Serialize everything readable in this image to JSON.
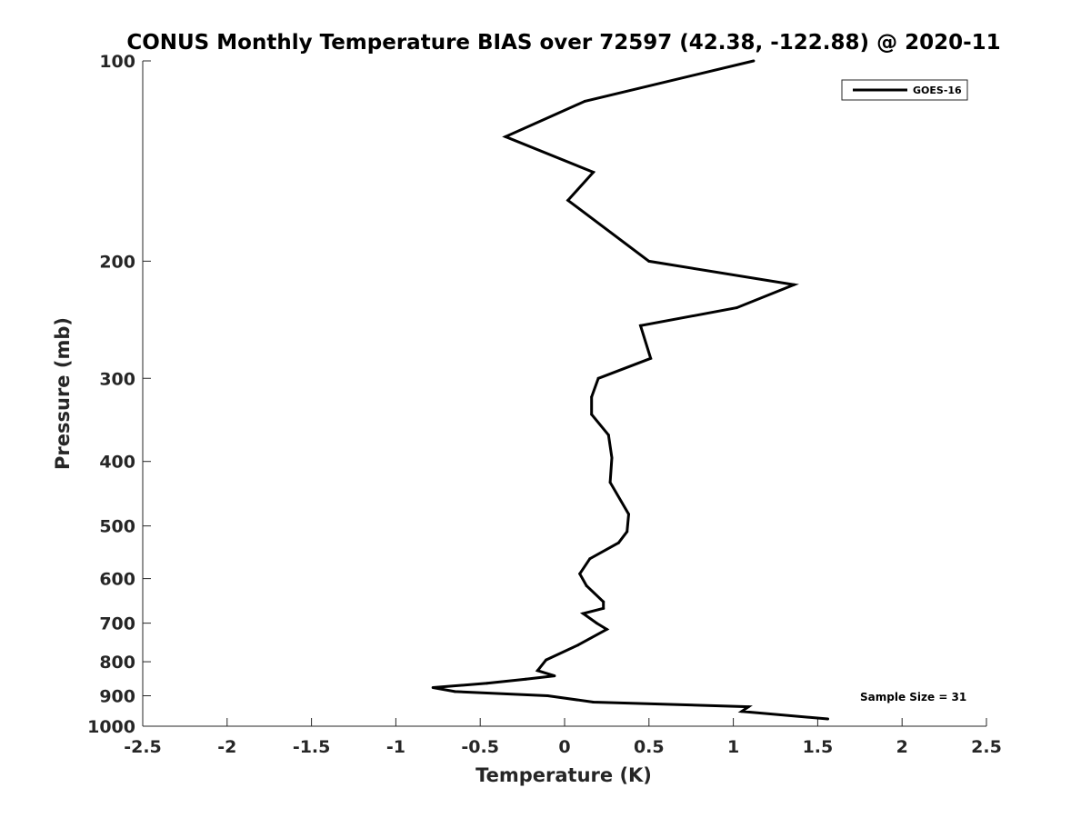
{
  "chart_data": {
    "type": "line",
    "title": "CONUS Monthly Temperature BIAS over 72597 (42.38, -122.88) @ 2020-11",
    "xlabel": "Temperature (K)",
    "ylabel": "Pressure (mb)",
    "xlim": [
      -2.5,
      2.5
    ],
    "ylim": [
      1000,
      100
    ],
    "y_scale": "log",
    "y_reversed": true,
    "grid": false,
    "legend_position": "top-right",
    "x_ticks": [
      "-2.5",
      "-2",
      "-1.5",
      "-1",
      "-0.5",
      "0",
      "0.5",
      "1",
      "1.5",
      "2",
      "2.5"
    ],
    "y_ticks": [
      "100",
      "200",
      "300",
      "400",
      "500",
      "600",
      "700",
      "800",
      "900",
      "1000"
    ],
    "annotation": "Sample Size = 31",
    "line_color": "#000000",
    "series": [
      {
        "name": "GOES-16",
        "points": [
          [
            1.12,
            100
          ],
          [
            0.12,
            115
          ],
          [
            -0.35,
            130
          ],
          [
            0.17,
            147
          ],
          [
            0.02,
            162
          ],
          [
            0.5,
            200
          ],
          [
            1.36,
            217
          ],
          [
            1.02,
            235
          ],
          [
            0.45,
            250
          ],
          [
            0.51,
            280
          ],
          [
            0.2,
            300
          ],
          [
            0.16,
            320
          ],
          [
            0.16,
            340
          ],
          [
            0.26,
            365
          ],
          [
            0.28,
            395
          ],
          [
            0.27,
            430
          ],
          [
            0.38,
            480
          ],
          [
            0.37,
            510
          ],
          [
            0.32,
            530
          ],
          [
            0.15,
            560
          ],
          [
            0.09,
            590
          ],
          [
            0.13,
            615
          ],
          [
            0.23,
            650
          ],
          [
            0.23,
            665
          ],
          [
            0.11,
            677
          ],
          [
            0.19,
            700
          ],
          [
            0.25,
            715
          ],
          [
            0.08,
            755
          ],
          [
            -0.11,
            795
          ],
          [
            -0.16,
            825
          ],
          [
            -0.06,
            840
          ],
          [
            -0.23,
            850
          ],
          [
            -0.46,
            862
          ],
          [
            -0.78,
            875
          ],
          [
            -0.65,
            887
          ],
          [
            -0.1,
            900
          ],
          [
            0.17,
            920
          ],
          [
            1.09,
            935
          ],
          [
            1.05,
            950
          ],
          [
            1.56,
            975
          ]
        ]
      }
    ]
  }
}
